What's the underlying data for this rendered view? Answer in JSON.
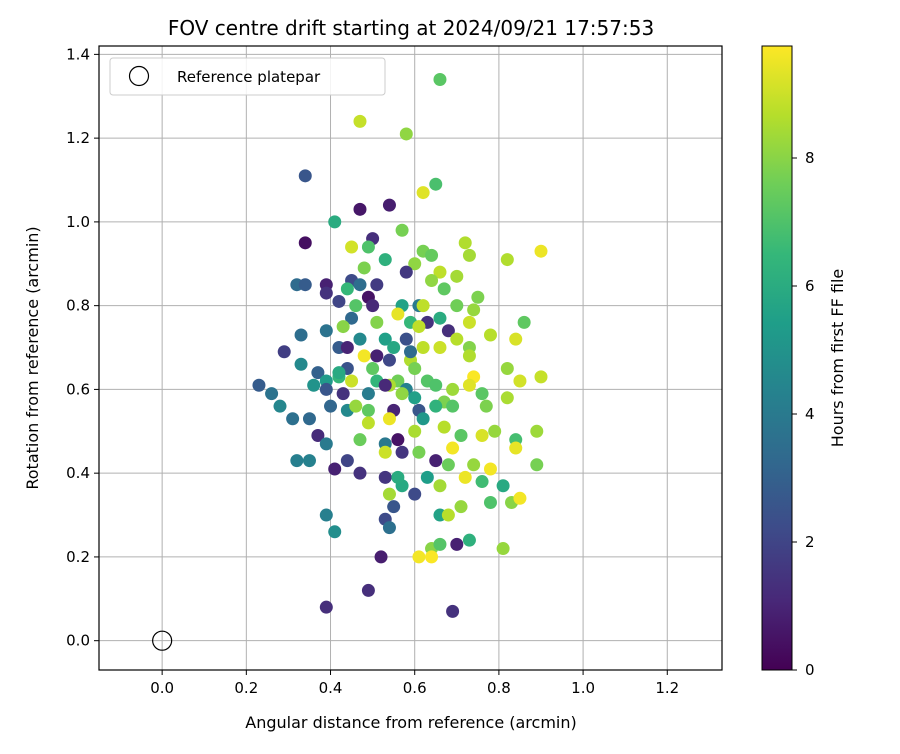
{
  "chart_data": {
    "type": "scatter",
    "title": "FOV centre drift starting at 2024/09/21 17:57:53",
    "xlabel": "Angular distance from reference (arcmin)",
    "ylabel": "Rotation from reference (arcmin)",
    "xlim": [
      -0.15,
      1.33
    ],
    "ylim": [
      -0.07,
      1.42
    ],
    "xticks": [
      "0.0",
      "0.2",
      "0.4",
      "0.6",
      "0.8",
      "1.0",
      "1.2"
    ],
    "yticks": [
      "0.0",
      "0.2",
      "0.4",
      "0.6",
      "0.8",
      "1.0",
      "1.2",
      "1.4"
    ],
    "grid": true,
    "legend": {
      "placement": "top-left",
      "label": "Reference platepar"
    },
    "reference_point": {
      "x": 0.0,
      "y": 0.0
    },
    "colorbar": {
      "label": "Hours from first FF file",
      "range": [
        0,
        9.75
      ],
      "ticks": [
        "0",
        "2",
        "4",
        "6",
        "8"
      ],
      "colormap": "viridis"
    },
    "series": [
      {
        "points": [
          [
            0.66,
            1.34,
            7.2
          ],
          [
            0.47,
            1.24,
            8.9
          ],
          [
            0.58,
            1.21,
            8.1
          ],
          [
            0.34,
            1.11,
            2.6
          ],
          [
            0.65,
            1.09,
            6.9
          ],
          [
            0.62,
            1.07,
            9.3
          ],
          [
            0.47,
            1.03,
            0.6
          ],
          [
            0.54,
            1.04,
            0.8
          ],
          [
            0.41,
            1.0,
            6.0
          ],
          [
            0.57,
            0.98,
            7.7
          ],
          [
            0.34,
            0.95,
            0.4
          ],
          [
            0.5,
            0.96,
            1.3
          ],
          [
            0.72,
            0.95,
            8.6
          ],
          [
            0.45,
            0.94,
            9.1
          ],
          [
            0.49,
            0.94,
            7.0
          ],
          [
            0.62,
            0.93,
            7.7
          ],
          [
            0.64,
            0.92,
            7.4
          ],
          [
            0.9,
            0.93,
            9.5
          ],
          [
            0.53,
            0.91,
            6.2
          ],
          [
            0.6,
            0.9,
            8.1
          ],
          [
            0.73,
            0.92,
            8.4
          ],
          [
            0.82,
            0.91,
            8.6
          ],
          [
            0.48,
            0.89,
            7.8
          ],
          [
            0.58,
            0.88,
            1.6
          ],
          [
            0.66,
            0.88,
            8.8
          ],
          [
            0.7,
            0.87,
            8.4
          ],
          [
            0.32,
            0.85,
            3.4
          ],
          [
            0.34,
            0.85,
            2.8
          ],
          [
            0.39,
            0.85,
            0.9
          ],
          [
            0.45,
            0.86,
            2.2
          ],
          [
            0.47,
            0.85,
            3.5
          ],
          [
            0.51,
            0.85,
            1.7
          ],
          [
            0.64,
            0.86,
            8.1
          ],
          [
            0.39,
            0.83,
            1.4
          ],
          [
            0.44,
            0.84,
            6.5
          ],
          [
            0.49,
            0.82,
            0.5
          ],
          [
            0.67,
            0.84,
            7.3
          ],
          [
            0.75,
            0.82,
            7.8
          ],
          [
            0.42,
            0.81,
            2.0
          ],
          [
            0.46,
            0.8,
            7.1
          ],
          [
            0.5,
            0.8,
            1.1
          ],
          [
            0.57,
            0.8,
            5.6
          ],
          [
            0.61,
            0.8,
            4.0
          ],
          [
            0.62,
            0.8,
            8.8
          ],
          [
            0.7,
            0.8,
            7.6
          ],
          [
            0.74,
            0.79,
            8.2
          ],
          [
            0.45,
            0.77,
            3.3
          ],
          [
            0.51,
            0.76,
            7.9
          ],
          [
            0.56,
            0.78,
            9.4
          ],
          [
            0.59,
            0.76,
            6.5
          ],
          [
            0.63,
            0.76,
            1.4
          ],
          [
            0.66,
            0.77,
            6.0
          ],
          [
            0.73,
            0.76,
            9.0
          ],
          [
            0.86,
            0.76,
            7.3
          ],
          [
            0.39,
            0.74,
            3.7
          ],
          [
            0.43,
            0.75,
            8.0
          ],
          [
            0.61,
            0.75,
            8.8
          ],
          [
            0.68,
            0.74,
            1.3
          ],
          [
            0.78,
            0.73,
            8.7
          ],
          [
            0.33,
            0.73,
            3.5
          ],
          [
            0.47,
            0.72,
            4.6
          ],
          [
            0.53,
            0.72,
            5.5
          ],
          [
            0.58,
            0.72,
            2.4
          ],
          [
            0.7,
            0.72,
            8.7
          ],
          [
            0.84,
            0.72,
            9.2
          ],
          [
            0.29,
            0.69,
            1.8
          ],
          [
            0.42,
            0.7,
            2.8
          ],
          [
            0.44,
            0.7,
            1.0
          ],
          [
            0.55,
            0.7,
            5.8
          ],
          [
            0.62,
            0.7,
            8.8
          ],
          [
            0.66,
            0.7,
            9.0
          ],
          [
            0.73,
            0.7,
            7.9
          ],
          [
            0.48,
            0.68,
            9.6
          ],
          [
            0.51,
            0.68,
            0.9
          ],
          [
            0.54,
            0.67,
            2.1
          ],
          [
            0.59,
            0.67,
            8.6
          ],
          [
            0.73,
            0.68,
            8.6
          ],
          [
            0.33,
            0.66,
            4.6
          ],
          [
            0.44,
            0.65,
            2.5
          ],
          [
            0.5,
            0.65,
            7.3
          ],
          [
            0.6,
            0.65,
            7.7
          ],
          [
            0.82,
            0.65,
            8.2
          ],
          [
            0.37,
            0.64,
            3.0
          ],
          [
            0.42,
            0.63,
            6.4
          ],
          [
            0.51,
            0.62,
            6.4
          ],
          [
            0.56,
            0.62,
            7.6
          ],
          [
            0.63,
            0.62,
            7.1
          ],
          [
            0.69,
            0.6,
            8.3
          ],
          [
            0.74,
            0.63,
            9.7
          ],
          [
            0.23,
            0.61,
            2.8
          ],
          [
            0.36,
            0.61,
            5.0
          ],
          [
            0.39,
            0.62,
            5.3
          ],
          [
            0.45,
            0.62,
            9.0
          ],
          [
            0.54,
            0.61,
            8.5
          ],
          [
            0.58,
            0.6,
            4.3
          ],
          [
            0.65,
            0.61,
            7.0
          ],
          [
            0.73,
            0.61,
            9.3
          ],
          [
            0.85,
            0.62,
            9.1
          ],
          [
            0.9,
            0.63,
            8.9
          ],
          [
            0.26,
            0.59,
            3.7
          ],
          [
            0.39,
            0.6,
            2.6
          ],
          [
            0.43,
            0.59,
            1.4
          ],
          [
            0.49,
            0.59,
            4.1
          ],
          [
            0.57,
            0.59,
            8.1
          ],
          [
            0.6,
            0.58,
            5.5
          ],
          [
            0.67,
            0.57,
            7.8
          ],
          [
            0.76,
            0.59,
            7.2
          ],
          [
            0.82,
            0.58,
            8.5
          ],
          [
            0.28,
            0.56,
            4.5
          ],
          [
            0.4,
            0.56,
            3.2
          ],
          [
            0.44,
            0.55,
            4.6
          ],
          [
            0.46,
            0.56,
            8.2
          ],
          [
            0.49,
            0.55,
            7.3
          ],
          [
            0.55,
            0.55,
            1.0
          ],
          [
            0.61,
            0.55,
            2.6
          ],
          [
            0.65,
            0.56,
            6.3
          ],
          [
            0.69,
            0.56,
            7.1
          ],
          [
            0.77,
            0.56,
            7.8
          ],
          [
            0.31,
            0.53,
            3.6
          ],
          [
            0.35,
            0.53,
            3.3
          ],
          [
            0.49,
            0.52,
            8.8
          ],
          [
            0.54,
            0.53,
            9.5
          ],
          [
            0.62,
            0.53,
            5.2
          ],
          [
            0.79,
            0.5,
            8.2
          ],
          [
            0.89,
            0.5,
            8.3
          ],
          [
            0.37,
            0.49,
            1.2
          ],
          [
            0.47,
            0.48,
            7.5
          ],
          [
            0.56,
            0.48,
            0.5
          ],
          [
            0.6,
            0.5,
            8.5
          ],
          [
            0.67,
            0.51,
            8.7
          ],
          [
            0.71,
            0.49,
            7.2
          ],
          [
            0.76,
            0.49,
            9.2
          ],
          [
            0.84,
            0.48,
            6.8
          ],
          [
            0.39,
            0.47,
            4.0
          ],
          [
            0.53,
            0.47,
            3.9
          ],
          [
            0.53,
            0.45,
            9.0
          ],
          [
            0.61,
            0.45,
            7.7
          ],
          [
            0.69,
            0.46,
            9.6
          ],
          [
            0.84,
            0.46,
            9.4
          ],
          [
            0.89,
            0.42,
            7.7
          ],
          [
            0.35,
            0.43,
            4.3
          ],
          [
            0.44,
            0.43,
            2.0
          ],
          [
            0.65,
            0.43,
            0.9
          ],
          [
            0.68,
            0.42,
            7.5
          ],
          [
            0.74,
            0.42,
            8.2
          ],
          [
            0.78,
            0.41,
            9.6
          ],
          [
            0.32,
            0.43,
            4.2
          ],
          [
            0.41,
            0.41,
            0.9
          ],
          [
            0.47,
            0.4,
            1.4
          ],
          [
            0.53,
            0.39,
            1.5
          ],
          [
            0.63,
            0.39,
            5.4
          ],
          [
            0.72,
            0.39,
            9.5
          ],
          [
            0.76,
            0.38,
            6.7
          ],
          [
            0.57,
            0.37,
            5.9
          ],
          [
            0.66,
            0.37,
            8.4
          ],
          [
            0.6,
            0.35,
            2.2
          ],
          [
            0.54,
            0.35,
            8.4
          ],
          [
            0.78,
            0.33,
            7.0
          ],
          [
            0.83,
            0.33,
            8.0
          ],
          [
            0.85,
            0.34,
            9.6
          ],
          [
            0.55,
            0.32,
            2.6
          ],
          [
            0.66,
            0.3,
            5.6
          ],
          [
            0.68,
            0.3,
            8.7
          ],
          [
            0.71,
            0.32,
            8.2
          ],
          [
            0.39,
            0.3,
            4.2
          ],
          [
            0.53,
            0.29,
            2.2
          ],
          [
            0.54,
            0.27,
            3.6
          ],
          [
            0.41,
            0.26,
            4.8
          ],
          [
            0.7,
            0.23,
            0.9
          ],
          [
            0.73,
            0.24,
            6.2
          ],
          [
            0.81,
            0.22,
            8.2
          ],
          [
            0.64,
            0.22,
            8.0
          ],
          [
            0.66,
            0.23,
            7.1
          ],
          [
            0.52,
            0.2,
            0.8
          ],
          [
            0.61,
            0.2,
            9.6
          ],
          [
            0.64,
            0.2,
            9.7
          ],
          [
            0.39,
            0.08,
            1.3
          ],
          [
            0.49,
            0.12,
            1.3
          ],
          [
            0.69,
            0.07,
            1.4
          ],
          [
            0.56,
            0.39,
            6.0
          ],
          [
            0.81,
            0.37,
            5.9
          ],
          [
            0.53,
            0.61,
            1.1
          ],
          [
            0.42,
            0.64,
            5.9
          ],
          [
            0.59,
            0.69,
            3.4
          ],
          [
            0.57,
            0.45,
            1.5
          ]
        ]
      }
    ]
  }
}
